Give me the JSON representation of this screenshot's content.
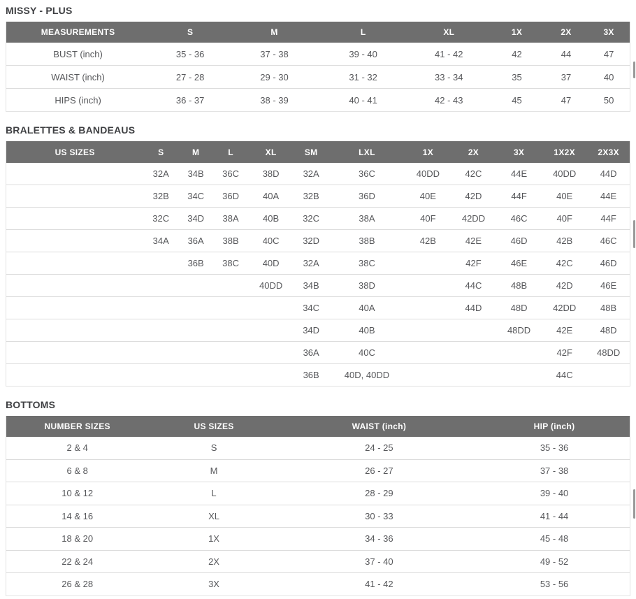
{
  "colors": {
    "header_bg": "#6e6e6e",
    "header_text": "#ffffff",
    "body_text": "#56575a",
    "title_text": "#3f4043",
    "row_border": "#dcdcdc",
    "table_border": "#e3e3e3",
    "scrollbar_thumb": "#999999"
  },
  "tables": [
    {
      "id": "missy-plus",
      "title": "MISSY - PLUS",
      "columns": [
        "MEASUREMENTS",
        "S",
        "M",
        "L",
        "XL",
        "1X",
        "2X",
        "3X"
      ],
      "rows": [
        [
          "BUST (inch)",
          "35 - 36",
          "37 - 38",
          "39 - 40",
          "41 - 42",
          "42",
          "44",
          "47"
        ],
        [
          "WAIST (inch)",
          "27 - 28",
          "29 - 30",
          "31 - 32",
          "33 - 34",
          "35",
          "37",
          "40"
        ],
        [
          "HIPS (inch)",
          "36 - 37",
          "38 - 39",
          "40 - 41",
          "42 - 43",
          "45",
          "47",
          "50"
        ]
      ]
    },
    {
      "id": "bralettes-bandeaus",
      "title": "BRALETTES & BANDEAUS",
      "columns": [
        "US SIZES",
        "S",
        "M",
        "L",
        "XL",
        "SM",
        "LXL",
        "1X",
        "2X",
        "3X",
        "1X2X",
        "2X3X"
      ],
      "rows": [
        [
          "",
          "32A",
          "34B",
          "36C",
          "38D",
          "32A",
          "36C",
          "40DD",
          "42C",
          "44E",
          "40DD",
          "44D"
        ],
        [
          "",
          "32B",
          "34C",
          "36D",
          "40A",
          "32B",
          "36D",
          "40E",
          "42D",
          "44F",
          "40E",
          "44E"
        ],
        [
          "",
          "32C",
          "34D",
          "38A",
          "40B",
          "32C",
          "38A",
          "40F",
          "42DD",
          "46C",
          "40F",
          "44F"
        ],
        [
          "",
          "34A",
          "36A",
          "38B",
          "40C",
          "32D",
          "38B",
          "42B",
          "42E",
          "46D",
          "42B",
          "46C"
        ],
        [
          "",
          "",
          "36B",
          "38C",
          "40D",
          "32A",
          "38C",
          "",
          "42F",
          "46E",
          "42C",
          "46D"
        ],
        [
          "",
          "",
          "",
          "",
          "40DD",
          "34B",
          "38D",
          "",
          "44C",
          "48B",
          "42D",
          "46E"
        ],
        [
          "",
          "",
          "",
          "",
          "",
          "34C",
          "40A",
          "",
          "44D",
          "48D",
          "42DD",
          "48B"
        ],
        [
          "",
          "",
          "",
          "",
          "",
          "34D",
          "40B",
          "",
          "",
          "48DD",
          "42E",
          "48D"
        ],
        [
          "",
          "",
          "",
          "",
          "",
          "36A",
          "40C",
          "",
          "",
          "",
          "42F",
          "48DD"
        ],
        [
          "",
          "",
          "",
          "",
          "",
          "36B",
          "40D, 40DD",
          "",
          "",
          "",
          "44C",
          ""
        ]
      ]
    },
    {
      "id": "bottoms",
      "title": "BOTTOMS",
      "columns": [
        "NUMBER SIZES",
        "US SIZES",
        "WAIST (inch)",
        "HIP (inch)"
      ],
      "rows": [
        [
          "2 & 4",
          "S",
          "24 - 25",
          "35 - 36"
        ],
        [
          "6 & 8",
          "M",
          "26 - 27",
          "37 - 38"
        ],
        [
          "10 & 12",
          "L",
          "28 - 29",
          "39 - 40"
        ],
        [
          "14 & 16",
          "XL",
          "30 - 33",
          "41 - 44"
        ],
        [
          "18 & 20",
          "1X",
          "34 - 36",
          "45 - 48"
        ],
        [
          "22 & 24",
          "2X",
          "37 - 40",
          "49 - 52"
        ],
        [
          "26 & 28",
          "3X",
          "41 - 42",
          "53 - 56"
        ]
      ]
    }
  ]
}
